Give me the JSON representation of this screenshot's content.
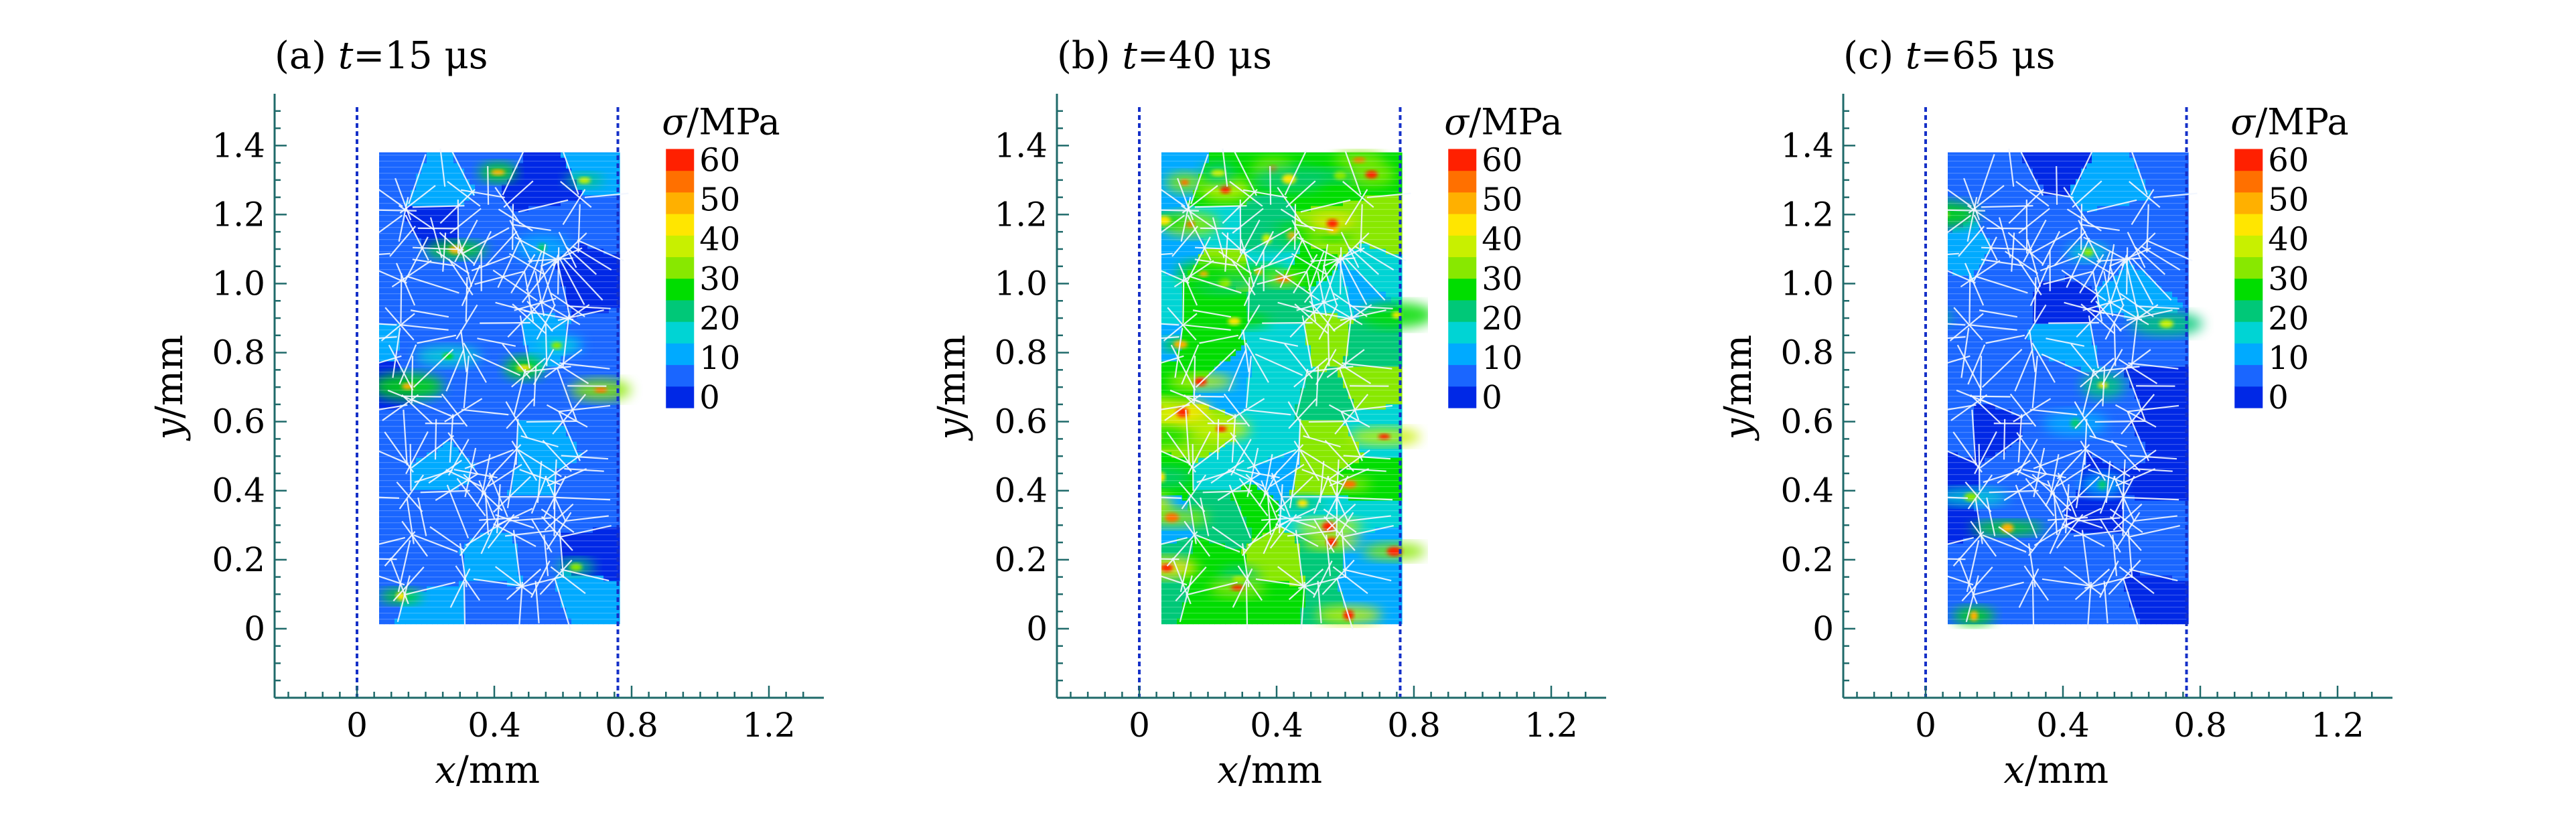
{
  "chart_data": {
    "type": "heatmap",
    "colorbar": {
      "title": "σ/MPa",
      "ticks": [
        0,
        10,
        20,
        30,
        40,
        50,
        60
      ],
      "range": [
        0,
        60
      ],
      "colors": [
        "#0028e6",
        "#1a66ff",
        "#00aaff",
        "#00d4d4",
        "#00c878",
        "#00dd00",
        "#88e800",
        "#c8f000",
        "#ffe600",
        "#ffb000",
        "#ff7000",
        "#ff2000"
      ]
    },
    "axes": {
      "xlabel": "x/mm",
      "ylabel": "y/mm",
      "xticks": [
        "0",
        "0.4",
        "0.8",
        "1.2"
      ],
      "yticks": [
        "0",
        "0.2",
        "0.4",
        "0.6",
        "0.8",
        "1.0",
        "1.2",
        "1.4"
      ],
      "xlim": [
        -0.24,
        1.36
      ],
      "ylim": [
        -0.2,
        1.55
      ],
      "specimen_x": [
        0,
        0.76
      ],
      "specimen_y": [
        0.02,
        1.38
      ]
    },
    "panels": [
      {
        "label": "(a) ",
        "t_symbol": "t",
        "value": "=15 μs",
        "time_us": 15,
        "mean_stress_mpa": 9,
        "hotspot_count": 12
      },
      {
        "label": "(b) ",
        "t_symbol": "t",
        "value": "=40 μs",
        "time_us": 40,
        "mean_stress_mpa": 24,
        "hotspot_count": 40
      },
      {
        "label": "(c) ",
        "t_symbol": "t",
        "value": "=65 μs",
        "time_us": 65,
        "mean_stress_mpa": 8,
        "hotspot_count": 10
      }
    ]
  }
}
